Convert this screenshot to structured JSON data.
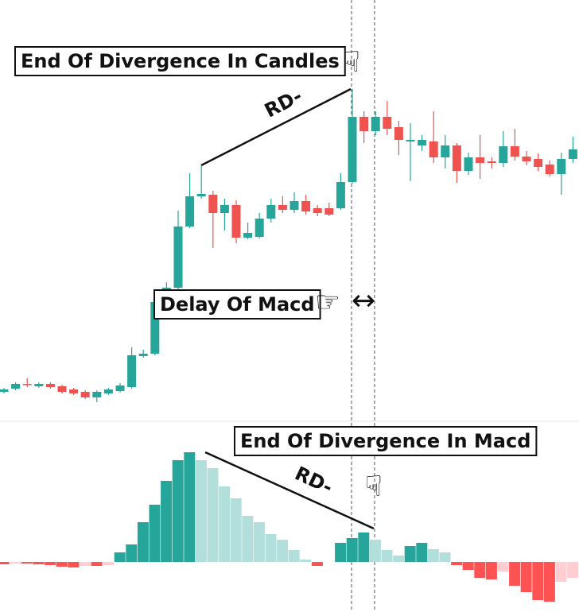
{
  "chart_data": [
    {
      "type": "candlestick",
      "open": [
        37,
        41,
        47,
        44,
        47,
        44,
        40,
        37,
        30,
        35,
        38,
        43,
        82,
        85,
        166,
        168,
        245,
        283,
        285,
        262,
        272,
        231,
        232,
        255,
        272,
        266,
        277,
        268,
        268,
        268,
        301,
        383,
        365,
        383,
        370,
        352,
        347,
        352,
        332,
        347,
        315,
        332,
        327,
        325,
        346,
        333,
        330,
        323,
        311,
        330
      ],
      "high": [
        42,
        49,
        54,
        49,
        49,
        46,
        42,
        39,
        39,
        42,
        48,
        93,
        90,
        155,
        175,
        265,
        312,
        322,
        290,
        280,
        278,
        250,
        262,
        280,
        283,
        288,
        285,
        272,
        275,
        312,
        418,
        390,
        390,
        403,
        378,
        375,
        360,
        390,
        360,
        350,
        338,
        360,
        332,
        365,
        368,
        340,
        337,
        328,
        338,
        358
      ],
      "low": [
        35,
        39,
        43,
        42,
        41,
        35,
        33,
        28,
        24,
        33,
        36,
        41,
        80,
        83,
        164,
        166,
        243,
        280,
        218,
        240,
        224,
        229,
        230,
        250,
        262,
        262,
        260,
        258,
        258,
        266,
        299,
        350,
        360,
        360,
        335,
        302,
        340,
        325,
        318,
        300,
        310,
        305,
        318,
        320,
        328,
        322,
        315,
        308,
        285,
        325
      ],
      "close": [
        40,
        47,
        46,
        47,
        43,
        37,
        35,
        30,
        37,
        40,
        45,
        83,
        85,
        150,
        168,
        245,
        283,
        286,
        262,
        272,
        231,
        237,
        255,
        272,
        266,
        277,
        264,
        262,
        260,
        301,
        383,
        365,
        383,
        368,
        354,
        354,
        354,
        332,
        347,
        315,
        332,
        325,
        325,
        346,
        333,
        327,
        320,
        311,
        330,
        342
      ],
      "up_color": "#26a69a",
      "down_color": "#ef5350",
      "ylim": [
        0,
        530
      ],
      "annotations": [
        {
          "text": "End Of Divergence In Candles"
        },
        {
          "text": "RD-"
        },
        {
          "text": "Delay Of Macd"
        },
        {
          "text": "☟"
        },
        {
          "text": "☞"
        },
        {
          "text": "↔"
        }
      ]
    },
    {
      "type": "histogram-macd",
      "values": [
        -3,
        -2,
        -2,
        -3,
        -4,
        -6,
        -7,
        -5,
        -5,
        -4,
        12,
        22,
        50,
        72,
        102,
        128,
        138,
        128,
        118,
        95,
        80,
        58,
        50,
        35,
        28,
        15,
        3,
        -5,
        0,
        24,
        30,
        37,
        28,
        15,
        8,
        20,
        24,
        16,
        12,
        -4,
        -10,
        -20,
        -22,
        -12,
        -30,
        -38,
        -48,
        -50,
        -25,
        -20
      ],
      "colors": {
        "rising_positive": "#26a69a",
        "falling_positive": "#b2dfdb",
        "falling_negative": "#ff5252",
        "rising_negative": "#ffcdd2"
      },
      "ylim": [
        -63,
        177
      ],
      "annotations": [
        {
          "text": "End Of Divergence In Macd"
        },
        {
          "text": "RD-"
        },
        {
          "text": "☟"
        }
      ]
    }
  ]
}
